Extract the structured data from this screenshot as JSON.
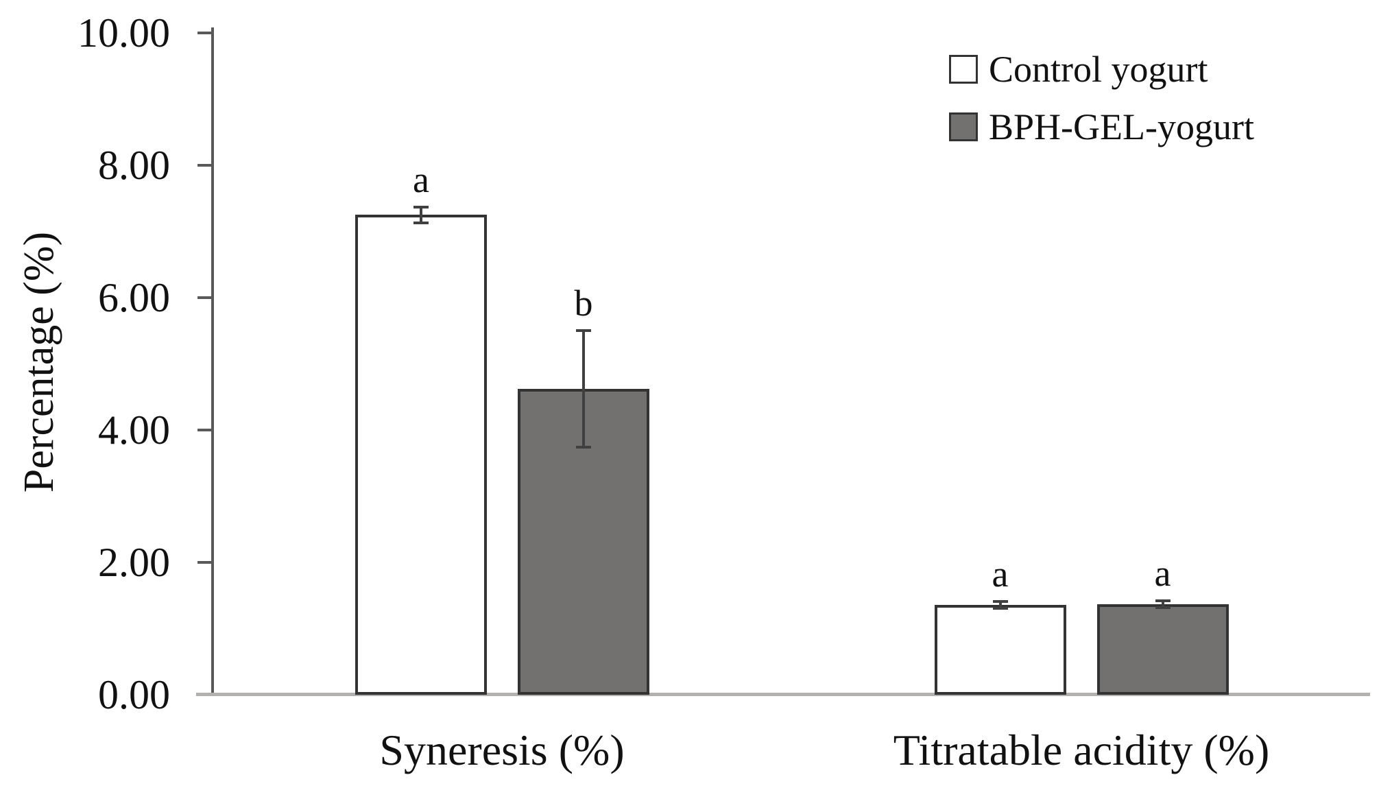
{
  "chart_data": {
    "type": "bar",
    "title": "",
    "ylabel": "Percentage (%)",
    "xlabel": "",
    "ylim": [
      0,
      10
    ],
    "ytick_step": 2,
    "ytick_labels": [
      "0.00",
      "2.00",
      "4.00",
      "6.00",
      "8.00",
      "10.00"
    ],
    "categories": [
      "Syneresis (%)",
      "Titratable acidity (%)"
    ],
    "series": [
      {
        "name": "Control yogurt",
        "color": "#ffffff",
        "values": [
          7.25,
          1.36
        ],
        "errors": [
          0.12,
          0.05
        ],
        "sig_letters": [
          "a",
          "a"
        ]
      },
      {
        "name": "BPH-GEL-yogurt",
        "color": "#737070",
        "values": [
          4.62,
          1.37
        ],
        "errors": [
          0.88,
          0.05
        ],
        "sig_letters": [
          "b",
          "a"
        ]
      }
    ],
    "legend_position": "top-right",
    "grid": false,
    "colors": {
      "axis": "#595959",
      "baseline": "#b3b0b0",
      "bar_border": "#333333",
      "error_bar": "#404040",
      "text": "#111111"
    }
  }
}
